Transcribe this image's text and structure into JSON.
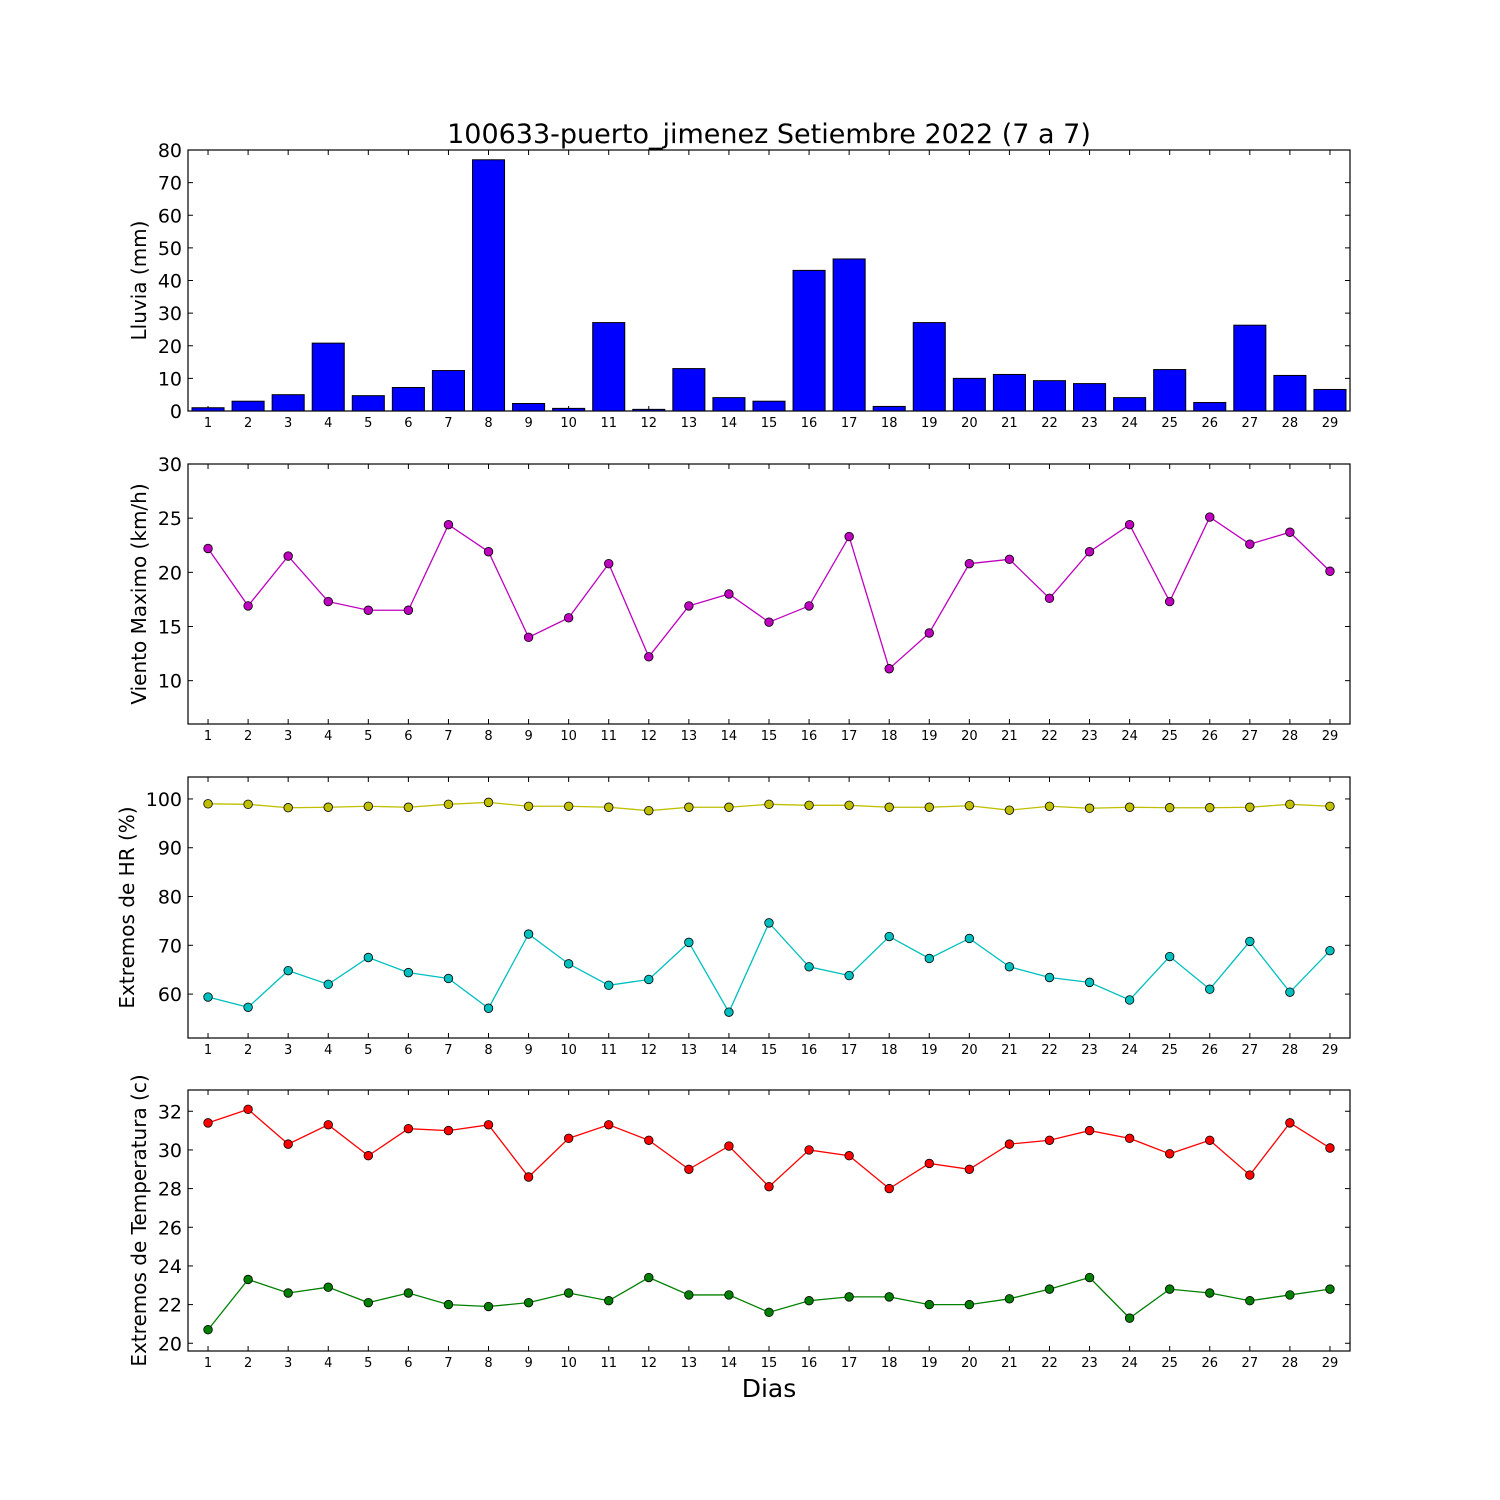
{
  "chart_data": {
    "title": "100633-puerto_jimenez Setiembre 2022  (7 a 7)",
    "xlabel": "Dias",
    "colors": {
      "lluvia": "#0000ff",
      "viento": "#bf00bf",
      "hr_max": "#bfbf00",
      "hr_min": "#00bfbf",
      "temp_max": "#ff0000",
      "temp_min": "#008000"
    },
    "days": [
      1,
      2,
      3,
      4,
      5,
      6,
      7,
      8,
      9,
      10,
      11,
      12,
      13,
      14,
      15,
      16,
      17,
      18,
      19,
      20,
      21,
      22,
      23,
      24,
      25,
      26,
      27,
      28,
      29
    ],
    "panels": [
      {
        "key": "lluvia",
        "type": "bar",
        "ylabel": "Lluvia (mm)",
        "ylim": [
          0,
          80
        ],
        "yticks": [
          0,
          10,
          20,
          30,
          40,
          50,
          60,
          70,
          80
        ],
        "series": [
          {
            "color": "#0000ff",
            "values": [
              1.0,
              3.0,
              5.0,
              20.8,
              4.7,
              7.2,
              12.4,
              77.0,
              2.3,
              0.8,
              27.1,
              0.5,
              13.0,
              4.1,
              3.0,
              43.1,
              46.6,
              1.4,
              27.1,
              10.0,
              11.2,
              9.3,
              8.4,
              4.1,
              12.7,
              2.6,
              26.3,
              10.9,
              6.6
            ]
          }
        ]
      },
      {
        "key": "viento",
        "type": "line",
        "ylabel": "Viento Maximo (km/h)",
        "ylim": [
          6,
          30
        ],
        "yticks": [
          10,
          15,
          20,
          25,
          30
        ],
        "series": [
          {
            "color": "#bf00bf",
            "values": [
              22.2,
              16.9,
              21.5,
              17.3,
              16.5,
              16.5,
              24.4,
              21.9,
              14.0,
              15.8,
              20.8,
              12.2,
              16.9,
              18.0,
              15.4,
              16.9,
              23.3,
              11.1,
              14.4,
              20.8,
              21.2,
              17.6,
              21.9,
              24.4,
              17.3,
              25.1,
              22.6,
              23.7,
              20.1
            ]
          }
        ]
      },
      {
        "key": "hr",
        "type": "line",
        "ylabel": "Extremos de HR (%)",
        "ylim": [
          51,
          104.5
        ],
        "yticks": [
          60,
          70,
          80,
          90,
          100
        ],
        "series": [
          {
            "color": "#bfbf00",
            "values": [
              99.0,
              98.9,
              98.2,
              98.3,
              98.5,
              98.3,
              98.9,
              99.3,
              98.5,
              98.5,
              98.3,
              97.6,
              98.3,
              98.3,
              98.9,
              98.7,
              98.7,
              98.3,
              98.3,
              98.6,
              97.7,
              98.5,
              98.1,
              98.3,
              98.2,
              98.2,
              98.3,
              98.9,
              98.5
            ]
          },
          {
            "color": "#00bfbf",
            "values": [
              59.4,
              57.3,
              64.8,
              62.0,
              67.5,
              64.4,
              63.2,
              57.1,
              72.3,
              66.2,
              61.8,
              63.0,
              70.6,
              56.3,
              74.6,
              65.6,
              63.8,
              71.8,
              67.3,
              71.4,
              65.6,
              63.4,
              62.4,
              58.8,
              67.7,
              61.0,
              70.8,
              60.4,
              68.9
            ]
          }
        ]
      },
      {
        "key": "temp",
        "type": "line",
        "ylabel": "Extremos de Temperatura (c)",
        "ylim": [
          19.6,
          33.1
        ],
        "yticks": [
          20,
          22,
          24,
          26,
          28,
          30,
          32
        ],
        "series": [
          {
            "color": "#ff0000",
            "values": [
              31.4,
              32.1,
              30.3,
              31.3,
              29.7,
              31.1,
              31.0,
              31.3,
              28.6,
              30.6,
              31.3,
              30.5,
              29.0,
              30.2,
              28.1,
              30.0,
              29.7,
              28.0,
              29.3,
              29.0,
              30.3,
              30.5,
              31.0,
              30.6,
              29.8,
              30.5,
              28.7,
              31.4,
              30.1
            ]
          },
          {
            "color": "#008000",
            "values": [
              20.7,
              23.3,
              22.6,
              22.9,
              22.1,
              22.6,
              22.0,
              21.9,
              22.1,
              22.6,
              22.2,
              23.4,
              22.5,
              22.5,
              21.6,
              22.2,
              22.4,
              22.4,
              22.0,
              22.0,
              22.3,
              22.8,
              23.4,
              21.3,
              22.8,
              22.6,
              22.2,
              22.5,
              22.8
            ]
          }
        ]
      }
    ]
  }
}
